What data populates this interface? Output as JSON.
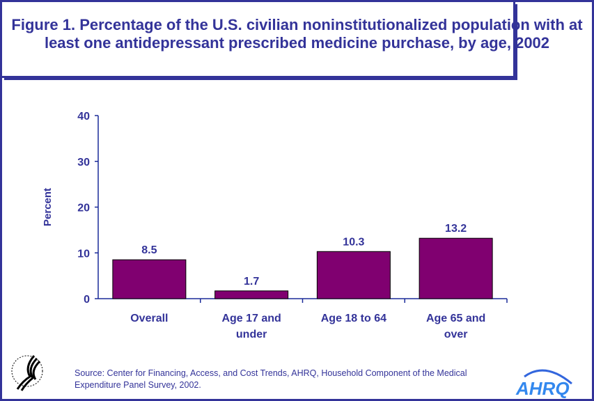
{
  "title": "Figure 1. Percentage of the U.S. civilian noninstitutionalized population with at least one antidepressant prescribed medicine purchase, by age, 2002",
  "source": "Source: Center for Financing, Access, and Cost Trends, AHRQ, Household Component of the Medical Expenditure Panel Survey, 2002.",
  "logos": {
    "hhs": "Department of Health & Human Services USA",
    "ahrq": "AHRQ"
  },
  "colors": {
    "text": "#333399",
    "bar": "#800070"
  },
  "chart_data": {
    "type": "bar",
    "title": "Figure 1. Percentage of the U.S. civilian noninstitutionalized population with at least one antidepressant prescribed medicine purchase, by age, 2002",
    "categories": [
      [
        "Overall"
      ],
      [
        "Age 17 and",
        "under"
      ],
      [
        "Age 18 to 64"
      ],
      [
        "Age 65 and",
        "over"
      ]
    ],
    "values": [
      8.5,
      1.7,
      10.3,
      13.2
    ],
    "data_labels": [
      "8.5",
      "1.7",
      "10.3",
      "13.2"
    ],
    "xlabel": "",
    "ylabel": "Percent",
    "ylim": [
      0,
      40
    ],
    "yticks": [
      0,
      10,
      20,
      30,
      40
    ],
    "grid": false,
    "legend": "none"
  }
}
